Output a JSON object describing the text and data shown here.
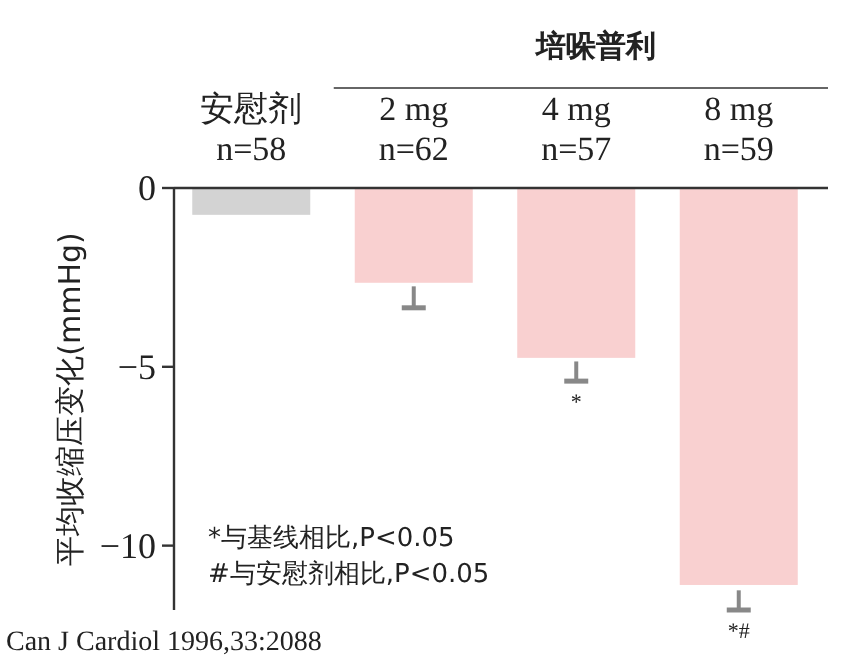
{
  "chart_data": {
    "type": "bar",
    "ylabel": "平均收缩压变化(mmHg)",
    "categories": [
      "安慰剂\nn=58",
      "2 mg\nn=62",
      "4 mg\nn=57",
      "8 mg\nn=59"
    ],
    "values": [
      -0.75,
      -2.65,
      -4.75,
      -11.1
    ],
    "colors": [
      "#d3d3d3",
      "#f9d0d0",
      "#f9d0d0",
      "#f9d0d0"
    ],
    "errors": [
      null,
      [
        -3.35,
        -2.75
      ],
      [
        -5.4,
        -4.85
      ],
      [
        -11.8,
        -11.25
      ]
    ],
    "ylim": [
      -11.8,
      0
    ],
    "yticks": [
      0,
      {
        "value": -5,
        "label": "−5"
      },
      {
        "value": -10,
        "label": "−10"
      }
    ],
    "grid": false,
    "annotations": [
      "培哚普利",
      {
        "text": "*",
        "x": "4 mg\nn=57",
        "y": -5.4
      },
      {
        "text": "*#",
        "x": "8 mg\nn=59",
        "y": -11.8
      },
      "*与基线相比,P<0.05",
      "#与安慰剂相比,P<0.05",
      "Can J Cardiol 1996,33:2088"
    ]
  }
}
